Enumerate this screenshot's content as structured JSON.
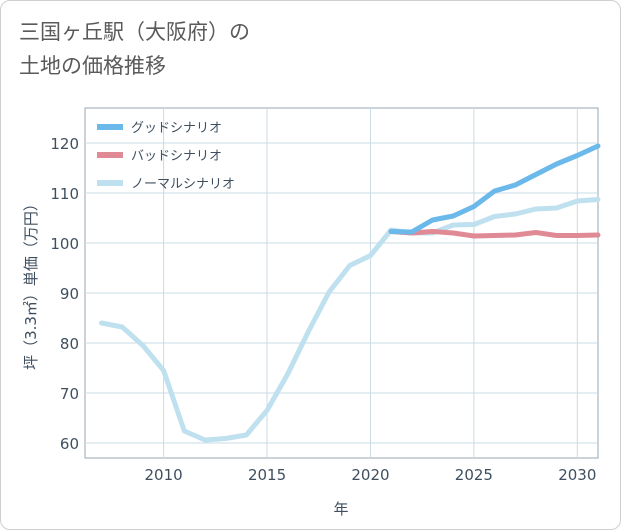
{
  "page": {
    "title_line1": "三国ヶ丘駅（大阪府）の",
    "title_line2": "土地の価格推移"
  },
  "chart_data": {
    "type": "line",
    "title": "三国ヶ丘駅（大阪府）の土地の価格推移",
    "xlabel": "年",
    "ylabel": "坪（3.3㎡）単価（万円）",
    "xlim": [
      2006.2,
      2031
    ],
    "ylim": [
      57,
      127
    ],
    "xticks": [
      2010,
      2015,
      2020,
      2025,
      2030
    ],
    "yticks": [
      60,
      70,
      80,
      90,
      100,
      110,
      120
    ],
    "grid": true,
    "legend_position": "top-left",
    "series": [
      {
        "name": "グッドシナリオ",
        "color": "#6bb8ea",
        "x": [
          2021,
          2022,
          2023,
          2024,
          2025,
          2026,
          2027,
          2028,
          2029,
          2030,
          2031
        ],
        "y": [
          102.3,
          102.2,
          104.6,
          105.4,
          107.3,
          110.4,
          111.6,
          113.7,
          115.8,
          117.5,
          119.4
        ]
      },
      {
        "name": "バッドシナリオ",
        "color": "#e08a95",
        "x": [
          2021,
          2022,
          2023,
          2024,
          2025,
          2026,
          2027,
          2028,
          2029,
          2030,
          2031
        ],
        "y": [
          102.3,
          102.0,
          102.3,
          102.0,
          101.4,
          101.5,
          101.6,
          102.1,
          101.5,
          101.5,
          101.6
        ]
      },
      {
        "name": "ノーマルシナリオ",
        "color": "#bfe0ee",
        "x": [
          2007,
          2008,
          2009,
          2010,
          2011,
          2012,
          2013,
          2014,
          2015,
          2016,
          2017,
          2018,
          2019,
          2020,
          2021,
          2022,
          2023,
          2024,
          2025,
          2026,
          2027,
          2028,
          2029,
          2030,
          2031
        ],
        "y": [
          84.0,
          83.2,
          79.5,
          74.5,
          62.4,
          60.6,
          60.9,
          61.6,
          66.5,
          73.8,
          82.3,
          90.2,
          95.5,
          97.5,
          102.6,
          102.0,
          102.0,
          103.6,
          103.7,
          105.3,
          105.8,
          106.8,
          107.0,
          108.4,
          108.7
        ]
      }
    ]
  }
}
